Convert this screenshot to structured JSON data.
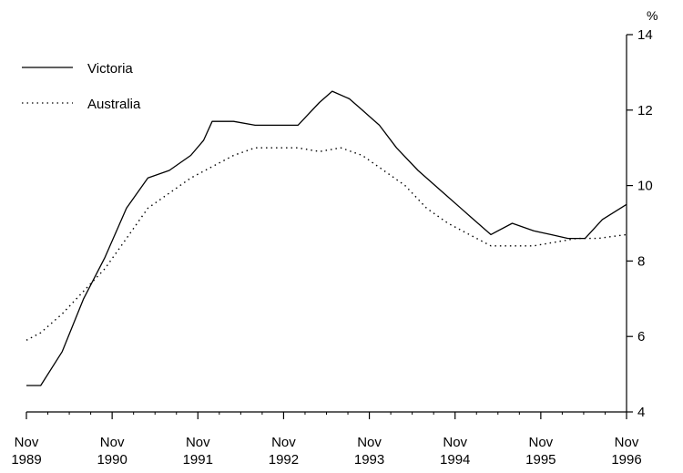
{
  "chart_data": {
    "type": "line",
    "title": "",
    "xlabel": "",
    "ylabel": "",
    "y_unit": "%",
    "ylim": [
      4,
      14
    ],
    "yticks": [
      4,
      6,
      8,
      10,
      12,
      14
    ],
    "y_axis_side": "right",
    "grid": false,
    "legend_position": "top-left",
    "xlim": [
      1989.833,
      1996.833
    ],
    "x_ticks": [
      {
        "x": 1989.833,
        "line1": "Nov",
        "line2": "1989"
      },
      {
        "x": 1990.833,
        "line1": "Nov",
        "line2": "1990"
      },
      {
        "x": 1991.833,
        "line1": "Nov",
        "line2": "1991"
      },
      {
        "x": 1992.833,
        "line1": "Nov",
        "line2": "1992"
      },
      {
        "x": 1993.833,
        "line1": "Nov",
        "line2": "1993"
      },
      {
        "x": 1994.833,
        "line1": "Nov",
        "line2": "1994"
      },
      {
        "x": 1995.833,
        "line1": "Nov",
        "line2": "1995"
      },
      {
        "x": 1996.833,
        "line1": "Nov",
        "line2": "1996"
      }
    ],
    "series": [
      {
        "name": "Victoria",
        "color": "#000000",
        "style": "solid",
        "x": [
          1989.833,
          1990.0,
          1990.25,
          1990.5,
          1990.75,
          1991.0,
          1991.25,
          1991.5,
          1991.75,
          1991.9,
          1992.0,
          1992.25,
          1992.5,
          1992.75,
          1993.0,
          1993.25,
          1993.4,
          1993.6,
          1993.75,
          1993.95,
          1994.15,
          1994.4,
          1994.7,
          1995.0,
          1995.25,
          1995.5,
          1995.75,
          1995.95,
          1996.15,
          1996.35,
          1996.55,
          1996.833
        ],
        "y": [
          4.7,
          4.7,
          5.6,
          7.0,
          8.1,
          9.4,
          10.2,
          10.4,
          10.8,
          11.2,
          11.7,
          11.7,
          11.6,
          11.6,
          11.6,
          12.2,
          12.5,
          12.3,
          12.0,
          11.6,
          11.0,
          10.4,
          9.8,
          9.2,
          8.7,
          9.0,
          8.8,
          8.7,
          8.6,
          8.6,
          9.1,
          9.5
        ]
      },
      {
        "name": "Australia",
        "color": "#000000",
        "style": "dotted",
        "x": [
          1989.833,
          1990.0,
          1990.25,
          1990.5,
          1990.75,
          1991.0,
          1991.25,
          1991.5,
          1991.75,
          1992.0,
          1992.25,
          1992.5,
          1992.75,
          1993.0,
          1993.25,
          1993.5,
          1993.75,
          1994.0,
          1994.25,
          1994.5,
          1994.75,
          1995.0,
          1995.25,
          1995.5,
          1995.75,
          1996.0,
          1996.25,
          1996.5,
          1996.833
        ],
        "y": [
          5.9,
          6.1,
          6.6,
          7.2,
          7.8,
          8.6,
          9.4,
          9.8,
          10.2,
          10.5,
          10.8,
          11.0,
          11.0,
          11.0,
          10.9,
          11.0,
          10.8,
          10.4,
          10.0,
          9.4,
          9.0,
          8.7,
          8.4,
          8.4,
          8.4,
          8.5,
          8.6,
          8.6,
          8.7
        ]
      }
    ]
  }
}
